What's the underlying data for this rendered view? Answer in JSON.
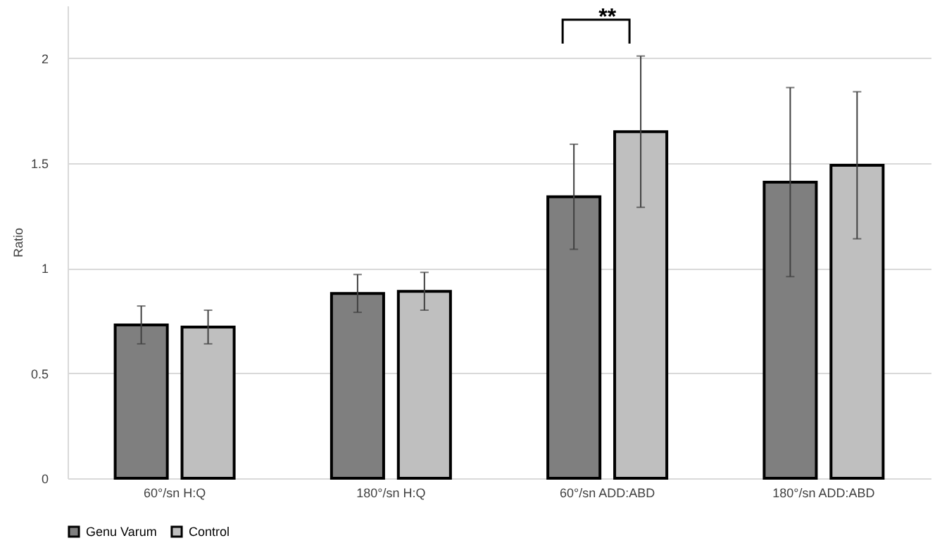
{
  "chart_data": {
    "type": "bar",
    "ylabel": "Ratio",
    "categories": [
      "60°/sn H:Q",
      "180°/sn H:Q",
      "60°/sn ADD:ABD",
      "180°/sn ADD:ABD"
    ],
    "series": [
      {
        "name": "Genu Varum",
        "color": "#7f7f7f",
        "values": [
          0.73,
          0.88,
          1.34,
          1.41
        ],
        "errors": [
          [
            0.64,
            0.82
          ],
          [
            0.79,
            0.97
          ],
          [
            1.09,
            1.59
          ],
          [
            0.96,
            1.86
          ]
        ]
      },
      {
        "name": "Control",
        "color": "#bfbfbf",
        "values": [
          0.72,
          0.89,
          1.65,
          1.49
        ],
        "errors": [
          [
            0.64,
            0.8
          ],
          [
            0.8,
            0.98
          ],
          [
            1.29,
            2.01
          ],
          [
            1.14,
            1.84
          ]
        ]
      }
    ],
    "annotations": [
      "**"
    ],
    "ylim": [
      0,
      2.25
    ],
    "yticks": [
      0,
      0.5,
      1,
      1.5,
      2
    ],
    "grid": "y",
    "legend": "bottom"
  }
}
